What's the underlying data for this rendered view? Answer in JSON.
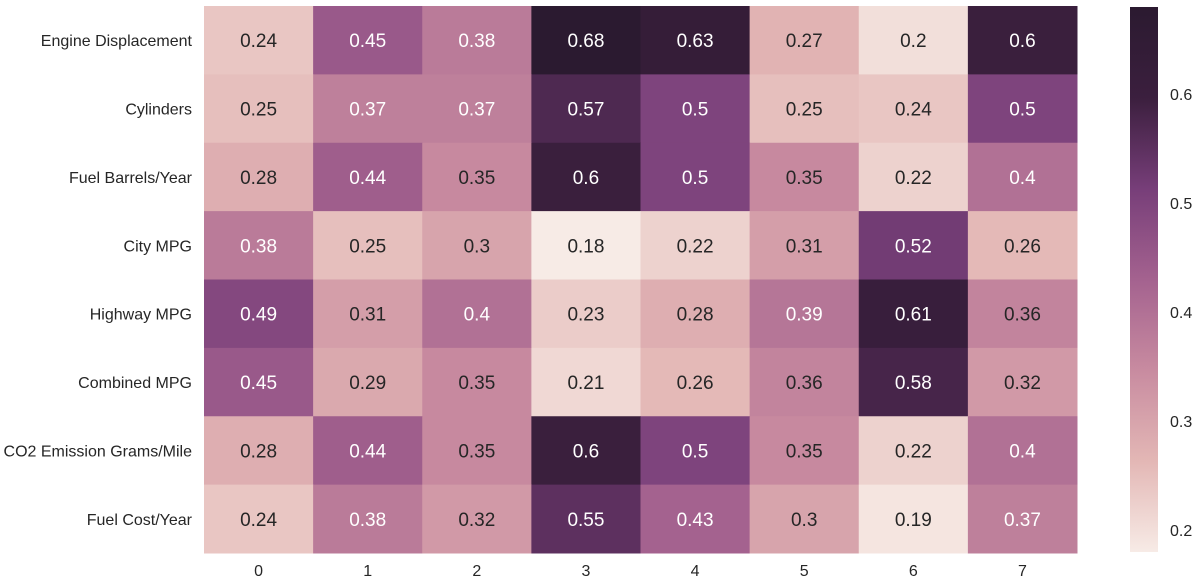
{
  "chart_data": {
    "type": "heatmap",
    "title": "",
    "xlabel": "",
    "ylabel": "",
    "x_categories": [
      "0",
      "1",
      "2",
      "3",
      "4",
      "5",
      "6",
      "7"
    ],
    "y_categories": [
      "Engine Displacement",
      "Cylinders",
      "Fuel Barrels/Year",
      "City MPG",
      "Highway MPG",
      "Combined MPG",
      "CO2 Emission Grams/Mile",
      "Fuel Cost/Year"
    ],
    "values": [
      [
        0.24,
        0.45,
        0.38,
        0.68,
        0.63,
        0.27,
        0.2,
        0.6
      ],
      [
        0.25,
        0.37,
        0.37,
        0.57,
        0.5,
        0.25,
        0.24,
        0.5
      ],
      [
        0.28,
        0.44,
        0.35,
        0.6,
        0.5,
        0.35,
        0.22,
        0.4
      ],
      [
        0.38,
        0.25,
        0.3,
        0.18,
        0.22,
        0.31,
        0.52,
        0.26
      ],
      [
        0.49,
        0.31,
        0.4,
        0.23,
        0.28,
        0.39,
        0.61,
        0.36
      ],
      [
        0.45,
        0.29,
        0.35,
        0.21,
        0.26,
        0.36,
        0.58,
        0.32
      ],
      [
        0.28,
        0.44,
        0.35,
        0.6,
        0.5,
        0.35,
        0.22,
        0.4
      ],
      [
        0.24,
        0.38,
        0.32,
        0.55,
        0.43,
        0.3,
        0.19,
        0.37
      ]
    ],
    "colorbar": {
      "min": 0.18,
      "max": 0.68,
      "ticks": [
        0.2,
        0.3,
        0.4,
        0.5,
        0.6
      ],
      "tick_labels": [
        "0.2",
        "0.3",
        "0.4",
        "0.5",
        "0.6"
      ],
      "colors": [
        "#f7ebe6",
        "#e3b7b5",
        "#c88ba0",
        "#a4628f",
        "#773e79",
        "#3b1f3e",
        "#2b1a30"
      ]
    },
    "annotate": true,
    "grid": false,
    "legend": "colorbar-right"
  }
}
